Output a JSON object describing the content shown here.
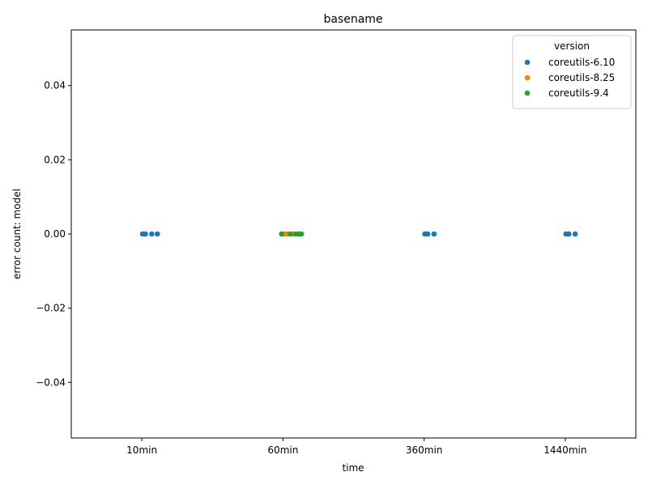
{
  "chart_data": {
    "type": "scatter",
    "title": "basename",
    "xlabel": "time",
    "ylabel": "error count: model",
    "categories": [
      "10min",
      "60min",
      "360min",
      "1440min"
    ],
    "ylim": [
      -0.055,
      0.055
    ],
    "yticks": [
      -0.04,
      -0.02,
      0.0,
      0.02,
      0.04
    ],
    "ytick_labels": [
      "−0.04",
      "−0.02",
      "0.00",
      "0.02",
      "0.04"
    ],
    "grid": false,
    "legend": {
      "title": "version",
      "placement": "top-right"
    },
    "series": [
      {
        "name": "coreutils-6.10",
        "color": "#1f77b4",
        "points": [
          {
            "category": "10min",
            "y": 0
          },
          {
            "category": "10min",
            "y": 0
          },
          {
            "category": "10min",
            "y": 0
          },
          {
            "category": "10min",
            "y": 0
          },
          {
            "category": "360min",
            "y": 0
          },
          {
            "category": "360min",
            "y": 0
          },
          {
            "category": "360min",
            "y": 0
          },
          {
            "category": "1440min",
            "y": 0
          },
          {
            "category": "1440min",
            "y": 0
          },
          {
            "category": "1440min",
            "y": 0
          }
        ]
      },
      {
        "name": "coreutils-8.25",
        "color": "#ff7f0e",
        "points": [
          {
            "category": "60min",
            "y": 0
          },
          {
            "category": "60min",
            "y": 0
          },
          {
            "category": "60min",
            "y": 0
          }
        ]
      },
      {
        "name": "coreutils-9.4",
        "color": "#2ca02c",
        "points": [
          {
            "category": "60min",
            "y": 0
          },
          {
            "category": "60min",
            "y": 0
          },
          {
            "category": "60min",
            "y": 0
          },
          {
            "category": "60min",
            "y": 0
          },
          {
            "category": "60min",
            "y": 0
          }
        ]
      }
    ]
  }
}
